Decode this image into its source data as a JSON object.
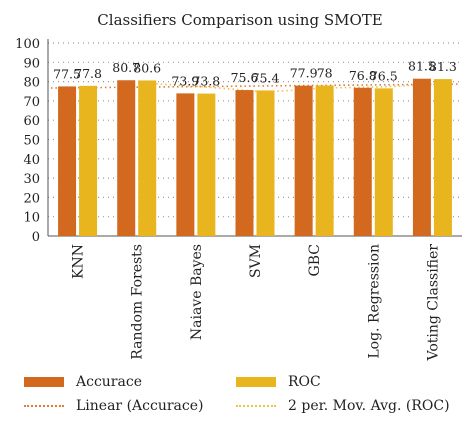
{
  "chart_data": {
    "type": "bar",
    "title": "Classifiers Comparison using SMOTE",
    "categories": [
      "KNN",
      "Random Forests",
      "Naiave Bayes",
      "SVM",
      "GBC",
      "Log. Regression",
      "Voting Classifier"
    ],
    "series": [
      {
        "name": "Accurace",
        "values": [
          77.5,
          80.7,
          73.9,
          75.6,
          77.9,
          76.8,
          81.5
        ],
        "color": "#d2691e"
      },
      {
        "name": "ROC",
        "values": [
          77.8,
          80.6,
          73.8,
          75.4,
          78,
          76.5,
          81.3
        ],
        "color": "#e8b51f"
      }
    ],
    "value_labels": {
      "Accurace": [
        "77.5",
        "80.7",
        "73.9",
        "75.6",
        "77.9",
        "76.8",
        "81.5"
      ],
      "ROC": [
        "77.8",
        "80.6",
        "73.8",
        "75.4",
        "78",
        "76.5",
        "81.3"
      ]
    },
    "trendlines": [
      {
        "name": "Linear (Accurace)",
        "color": "#e07b39",
        "style": "dotted"
      },
      {
        "name": "2 per. Mov. Avg. (ROC)",
        "color": "#efc24a",
        "style": "dotted"
      }
    ],
    "ylim": [
      0,
      100
    ],
    "yticks": [
      0,
      10,
      20,
      30,
      40,
      50,
      60,
      70,
      80,
      90,
      100
    ],
    "xlabel": "",
    "ylabel": "",
    "grid": true,
    "legend_position": "bottom"
  },
  "legend": {
    "accuracy_label": "Accurace",
    "roc_label": "ROC",
    "linear_label": "Linear (Accurace)",
    "movavg_label": "2 per. Mov. Avg. (ROC)"
  }
}
